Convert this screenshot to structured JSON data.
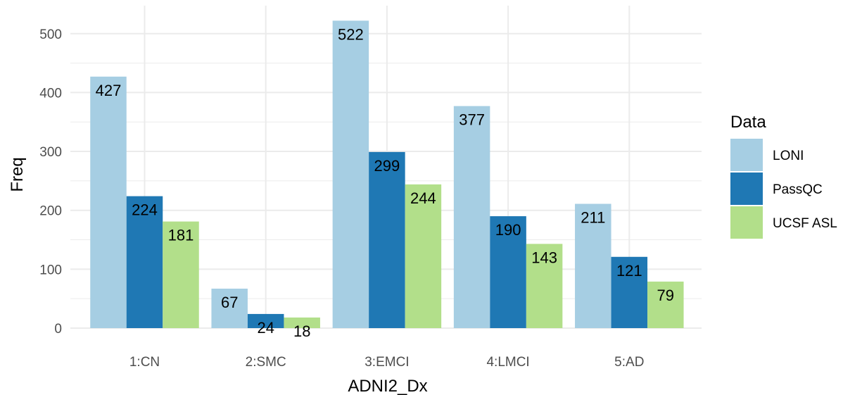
{
  "chart_data": {
    "type": "bar",
    "xlabel": "ADNI2_Dx",
    "ylabel": "Freq",
    "ylim": [
      0,
      530
    ],
    "yticks": [
      0,
      100,
      200,
      300,
      400,
      500
    ],
    "categories": [
      "1:CN",
      "2:SMC",
      "3:EMCI",
      "4:LMCI",
      "5:AD"
    ],
    "series": [
      {
        "name": "LONI",
        "color": "#a6cee3",
        "values": [
          427,
          67,
          522,
          377,
          211
        ]
      },
      {
        "name": "PassQC",
        "color": "#1f78b4",
        "values": [
          224,
          24,
          299,
          190,
          121
        ]
      },
      {
        "name": "UCSF ASL",
        "color": "#b2df8a",
        "values": [
          181,
          18,
          244,
          143,
          79
        ]
      }
    ],
    "legend": {
      "title": "Data",
      "position": "right"
    },
    "grid": true,
    "grid_color": "#ebebeb",
    "background": "#ffffff"
  }
}
